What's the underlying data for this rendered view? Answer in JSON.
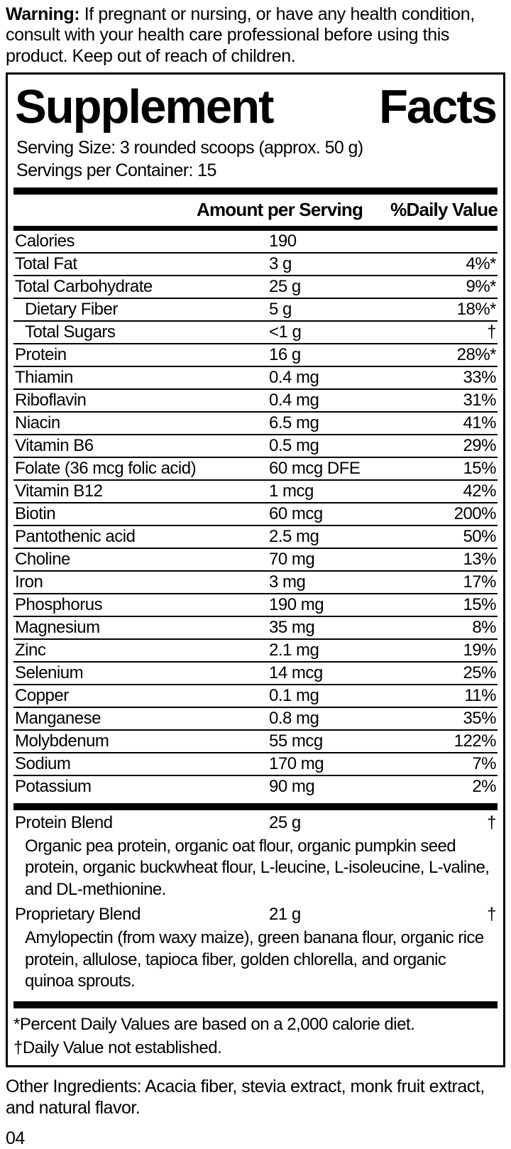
{
  "warning": {
    "label": "Warning:",
    "text": " If pregnant or nursing, or have any health condition, consult with your health care professional before using this product. Keep out of reach of children."
  },
  "panel": {
    "title_left": "Supplement",
    "title_right": "Facts",
    "serving_size": "Serving Size: 3 rounded scoops (approx. 50 g)",
    "servings_per_container": "Servings per Container: 15",
    "columns": {
      "amount": "Amount per Serving",
      "daily_value": "%Daily Value"
    },
    "rows": [
      {
        "name": "Calories",
        "amount": "190",
        "dv": "",
        "indent": false
      },
      {
        "name": "Total Fat",
        "amount": "3 g",
        "dv": "4%*",
        "indent": false
      },
      {
        "name": "Total Carbohydrate",
        "amount": "25 g",
        "dv": "9%*",
        "indent": false
      },
      {
        "name": "Dietary Fiber",
        "amount": "5 g",
        "dv": "18%*",
        "indent": true
      },
      {
        "name": "Total Sugars",
        "amount": "<1 g",
        "dv": "†",
        "indent": true
      },
      {
        "name": "Protein",
        "amount": "16 g",
        "dv": "28%*",
        "indent": false
      },
      {
        "name": "Thiamin",
        "amount": "0.4 mg",
        "dv": "33%",
        "indent": false
      },
      {
        "name": "Riboflavin",
        "amount": "0.4 mg",
        "dv": "31%",
        "indent": false
      },
      {
        "name": "Niacin",
        "amount": "6.5 mg",
        "dv": "41%",
        "indent": false
      },
      {
        "name": "Vitamin B6",
        "amount": "0.5 mg",
        "dv": "29%",
        "indent": false
      },
      {
        "name": "Folate (36 mcg folic acid)",
        "amount": "60 mcg DFE",
        "dv": "15%",
        "indent": false
      },
      {
        "name": "Vitamin B12",
        "amount": "1 mcg",
        "dv": "42%",
        "indent": false
      },
      {
        "name": "Biotin",
        "amount": "60 mcg",
        "dv": "200%",
        "indent": false
      },
      {
        "name": "Pantothenic acid",
        "amount": "2.5 mg",
        "dv": "50%",
        "indent": false
      },
      {
        "name": "Choline",
        "amount": "70 mg",
        "dv": "13%",
        "indent": false
      },
      {
        "name": "Iron",
        "amount": "3 mg",
        "dv": "17%",
        "indent": false
      },
      {
        "name": "Phosphorus",
        "amount": "190 mg",
        "dv": "15%",
        "indent": false
      },
      {
        "name": "Magnesium",
        "amount": "35 mg",
        "dv": "8%",
        "indent": false
      },
      {
        "name": "Zinc",
        "amount": "2.1 mg",
        "dv": "19%",
        "indent": false
      },
      {
        "name": "Selenium",
        "amount": "14 mcg",
        "dv": "25%",
        "indent": false
      },
      {
        "name": "Copper",
        "amount": "0.1 mg",
        "dv": "11%",
        "indent": false
      },
      {
        "name": "Manganese",
        "amount": "0.8 mg",
        "dv": "35%",
        "indent": false
      },
      {
        "name": "Molybdenum",
        "amount": "55 mcg",
        "dv": "122%",
        "indent": false
      },
      {
        "name": "Sodium",
        "amount": "170 mg",
        "dv": "7%",
        "indent": false
      },
      {
        "name": "Potassium",
        "amount": "90 mg",
        "dv": "2%",
        "indent": false
      }
    ],
    "blends": [
      {
        "name": "Protein Blend",
        "amount": "25 g",
        "dv": "†",
        "description": "Organic pea protein, organic oat flour, organic pumpkin seed protein, organic buckwheat flour, L-leucine, L-isoleucine, L-valine, and DL-methionine."
      },
      {
        "name": "Proprietary Blend",
        "amount": "21 g",
        "dv": "†",
        "description": "Amylopectin (from waxy maize), green banana flour, organic rice protein, allulose, tapioca fiber, golden chlorella, and organic quinoa sprouts."
      }
    ],
    "footnotes": [
      "*Percent Daily Values are based on a 2,000 calorie diet.",
      "†Daily Value not established."
    ]
  },
  "other_ingredients": "Other Ingredients: Acacia fiber, stevia extract, monk fruit extract, and natural flavor.",
  "page_number": "04",
  "colors": {
    "text": "#000000",
    "background": "#ffffff"
  }
}
